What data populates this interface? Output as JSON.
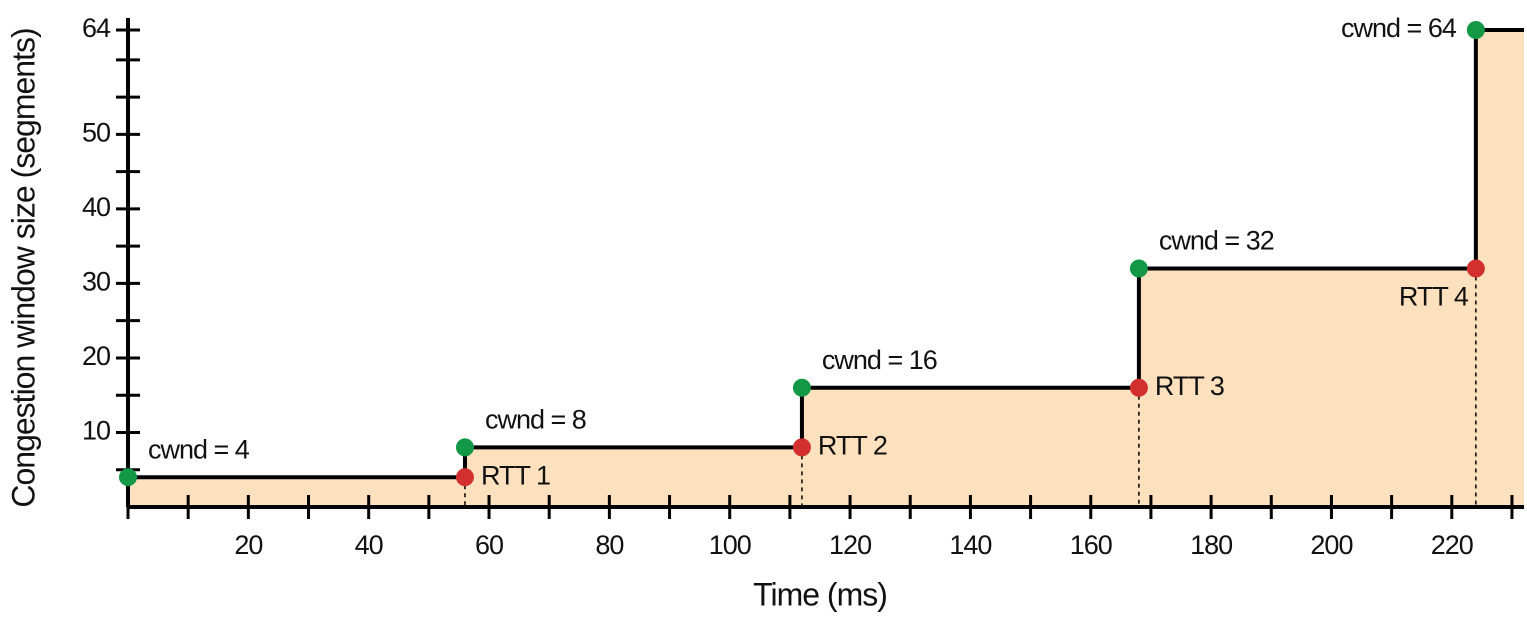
{
  "chart_data": {
    "type": "step",
    "xlabel": "Time (ms)",
    "ylabel": "Congestion window size (segments)",
    "xlim": [
      0,
      232
    ],
    "ylim": [
      0,
      64
    ],
    "xticks": [
      20,
      40,
      60,
      80,
      100,
      120,
      140,
      160,
      180,
      200,
      220
    ],
    "yticks": [
      10,
      20,
      30,
      40,
      50,
      64
    ],
    "xminorticks": [
      0,
      10,
      30,
      50,
      70,
      90,
      110,
      130,
      150,
      170,
      190,
      210,
      230
    ],
    "yminorticks": [
      5,
      15,
      25,
      35,
      45,
      55,
      60
    ],
    "x": [
      0,
      56,
      56,
      112,
      112,
      168,
      168,
      224,
      224,
      232
    ],
    "values": [
      4,
      4,
      8,
      8,
      16,
      16,
      32,
      32,
      64,
      64
    ],
    "color": "#000000",
    "fill": "#fde0bd",
    "cwnd": {
      "x": [
        0,
        56,
        112,
        168,
        224
      ],
      "values": [
        4,
        8,
        16,
        32,
        64
      ],
      "value_labels": [
        "cwnd = 4",
        "cwnd = 8",
        "cwnd = 16",
        "cwnd = 32",
        "cwnd = 64"
      ],
      "color": "#129846"
    },
    "rtt": {
      "x": [
        56,
        112,
        168,
        224
      ],
      "values": [
        4,
        8,
        16,
        32
      ],
      "labels": [
        "RTT 1",
        "RTT 2",
        "RTT 3",
        "RTT 4"
      ],
      "color": "#d2302f"
    }
  }
}
